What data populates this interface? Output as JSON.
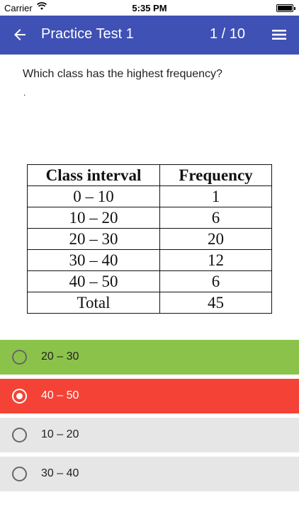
{
  "status": {
    "carrier": "Carrier",
    "time": "5:35 PM"
  },
  "header": {
    "title": "Practice Test 1",
    "counter": "1  / 10"
  },
  "question": {
    "text": "Which class has the highest frequency?",
    "note": "."
  },
  "table": {
    "headers": [
      "Class interval",
      "Frequency"
    ],
    "rows": [
      [
        "0 – 10",
        "1"
      ],
      [
        "10 – 20",
        "6"
      ],
      [
        "20 – 30",
        "20"
      ],
      [
        "30 – 40",
        "12"
      ],
      [
        "40 – 50",
        "6"
      ],
      [
        "Total",
        "45"
      ]
    ]
  },
  "options": [
    {
      "label": "20 – 30",
      "state": "correct",
      "color": "#8bc34a"
    },
    {
      "label": "40 – 50",
      "state": "wrong-selected",
      "color": "#f44336"
    },
    {
      "label": "10 – 20",
      "state": "neutral",
      "color": "#e6e6e6"
    },
    {
      "label": "30 – 40",
      "state": "neutral",
      "color": "#e6e6e6"
    }
  ],
  "colors": {
    "app_bar": "#3f51b5"
  }
}
